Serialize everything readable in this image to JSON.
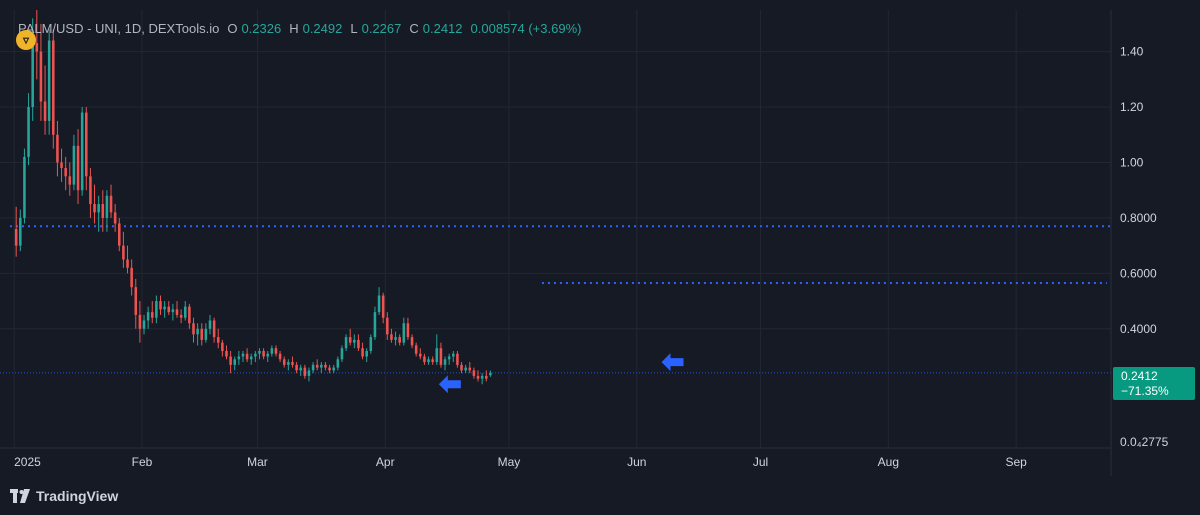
{
  "header": {
    "symbol": "PALM/USD - UNI, 1D, DEXTools.io",
    "open_label": "O",
    "open": "0.2326",
    "high_label": "H",
    "high": "0.2492",
    "low_label": "L",
    "low": "0.2267",
    "close_label": "C",
    "close": "0.2412",
    "change": "0.008574 (+3.69%)"
  },
  "badge": {
    "price": "0.2412",
    "change_pct": "−71.35%"
  },
  "branding": {
    "name": "TradingView"
  },
  "colors": {
    "up": "#26a69a",
    "down": "#ef5350",
    "background": "#161a25",
    "grid": "#232733",
    "level_line": "#2962ff",
    "badge": "#089981",
    "arrow": "#2962ff"
  },
  "icons": {
    "symbol_logo": "palm-token-icon",
    "brand_logo": "tradingview-logo-icon",
    "marker": "arrow-left-icon"
  },
  "chart_data": {
    "type": "candlestick",
    "x_axis": {
      "ticks": [
        "2025",
        "Feb",
        "Mar",
        "Apr",
        "May",
        "Jun",
        "Jul",
        "Aug",
        "Sep"
      ],
      "range": [
        "2024-12-31",
        "2025-09-24"
      ]
    },
    "y_axis": {
      "ticks": [
        "1.40",
        "1.20",
        "1.00",
        "0.8000",
        "0.6000",
        "0.4000"
      ],
      "min_label": "0.0₄2775",
      "range": [
        -0.03,
        1.55
      ],
      "position": "right"
    },
    "grid": true,
    "current_price": 0.2412,
    "candles": [
      [
        0.76,
        0.84,
        0.66,
        0.7
      ],
      [
        0.7,
        0.83,
        0.68,
        0.8
      ],
      [
        0.8,
        1.05,
        0.78,
        1.02
      ],
      [
        1.02,
        1.25,
        0.99,
        1.2
      ],
      [
        1.2,
        1.52,
        1.15,
        1.43
      ],
      [
        1.43,
        1.55,
        1.3,
        1.4
      ],
      [
        1.4,
        1.5,
        1.15,
        1.22
      ],
      [
        1.22,
        1.35,
        1.1,
        1.15
      ],
      [
        1.15,
        1.48,
        1.1,
        1.44
      ],
      [
        1.44,
        1.48,
        1.05,
        1.1
      ],
      [
        1.1,
        1.15,
        0.95,
        1.0
      ],
      [
        1.0,
        1.05,
        0.93,
        0.98
      ],
      [
        0.98,
        1.02,
        0.9,
        0.95
      ],
      [
        0.95,
        1.0,
        0.88,
        0.92
      ],
      [
        0.92,
        1.1,
        0.9,
        1.06
      ],
      [
        1.06,
        1.12,
        0.85,
        0.9
      ],
      [
        0.9,
        1.2,
        0.88,
        1.18
      ],
      [
        1.18,
        1.2,
        0.9,
        0.95
      ],
      [
        0.95,
        0.98,
        0.8,
        0.85
      ],
      [
        0.85,
        0.92,
        0.78,
        0.82
      ],
      [
        0.82,
        0.88,
        0.75,
        0.85
      ],
      [
        0.85,
        0.9,
        0.75,
        0.8
      ],
      [
        0.8,
        0.9,
        0.75,
        0.88
      ],
      [
        0.88,
        0.92,
        0.8,
        0.82
      ],
      [
        0.82,
        0.85,
        0.75,
        0.78
      ],
      [
        0.78,
        0.8,
        0.68,
        0.7
      ],
      [
        0.7,
        0.75,
        0.62,
        0.65
      ],
      [
        0.65,
        0.7,
        0.6,
        0.62
      ],
      [
        0.62,
        0.65,
        0.52,
        0.55
      ],
      [
        0.55,
        0.58,
        0.4,
        0.45
      ],
      [
        0.45,
        0.5,
        0.35,
        0.4
      ],
      [
        0.4,
        0.45,
        0.38,
        0.43
      ],
      [
        0.43,
        0.48,
        0.4,
        0.46
      ],
      [
        0.46,
        0.5,
        0.42,
        0.44
      ],
      [
        0.44,
        0.52,
        0.42,
        0.5
      ],
      [
        0.5,
        0.52,
        0.45,
        0.47
      ],
      [
        0.47,
        0.5,
        0.44,
        0.48
      ],
      [
        0.48,
        0.5,
        0.45,
        0.46
      ],
      [
        0.46,
        0.49,
        0.43,
        0.47
      ],
      [
        0.47,
        0.5,
        0.44,
        0.45
      ],
      [
        0.45,
        0.47,
        0.42,
        0.44
      ],
      [
        0.44,
        0.5,
        0.43,
        0.48
      ],
      [
        0.48,
        0.49,
        0.4,
        0.42
      ],
      [
        0.42,
        0.44,
        0.35,
        0.38
      ],
      [
        0.38,
        0.42,
        0.34,
        0.4
      ],
      [
        0.4,
        0.42,
        0.34,
        0.36
      ],
      [
        0.36,
        0.42,
        0.35,
        0.4
      ],
      [
        0.4,
        0.45,
        0.38,
        0.43
      ],
      [
        0.43,
        0.44,
        0.35,
        0.37
      ],
      [
        0.37,
        0.4,
        0.33,
        0.35
      ],
      [
        0.35,
        0.36,
        0.3,
        0.32
      ],
      [
        0.32,
        0.34,
        0.29,
        0.3
      ],
      [
        0.3,
        0.32,
        0.24,
        0.27
      ],
      [
        0.27,
        0.3,
        0.25,
        0.29
      ],
      [
        0.29,
        0.32,
        0.27,
        0.3
      ],
      [
        0.3,
        0.32,
        0.28,
        0.31
      ],
      [
        0.31,
        0.33,
        0.28,
        0.29
      ],
      [
        0.29,
        0.31,
        0.27,
        0.3
      ],
      [
        0.3,
        0.32,
        0.28,
        0.31
      ],
      [
        0.31,
        0.33,
        0.29,
        0.32
      ],
      [
        0.32,
        0.33,
        0.29,
        0.3
      ],
      [
        0.3,
        0.32,
        0.28,
        0.31
      ],
      [
        0.31,
        0.34,
        0.3,
        0.33
      ],
      [
        0.33,
        0.34,
        0.3,
        0.31
      ],
      [
        0.31,
        0.32,
        0.28,
        0.29
      ],
      [
        0.29,
        0.3,
        0.26,
        0.27
      ],
      [
        0.27,
        0.29,
        0.25,
        0.28
      ],
      [
        0.28,
        0.3,
        0.26,
        0.27
      ],
      [
        0.27,
        0.28,
        0.24,
        0.25
      ],
      [
        0.25,
        0.27,
        0.23,
        0.26
      ],
      [
        0.26,
        0.27,
        0.22,
        0.23
      ],
      [
        0.23,
        0.26,
        0.21,
        0.25
      ],
      [
        0.25,
        0.28,
        0.24,
        0.27
      ],
      [
        0.27,
        0.29,
        0.25,
        0.26
      ],
      [
        0.26,
        0.28,
        0.24,
        0.27
      ],
      [
        0.27,
        0.28,
        0.25,
        0.26
      ],
      [
        0.26,
        0.27,
        0.24,
        0.25
      ],
      [
        0.25,
        0.27,
        0.24,
        0.26
      ],
      [
        0.26,
        0.3,
        0.25,
        0.29
      ],
      [
        0.29,
        0.34,
        0.28,
        0.33
      ],
      [
        0.33,
        0.38,
        0.32,
        0.37
      ],
      [
        0.37,
        0.4,
        0.34,
        0.35
      ],
      [
        0.35,
        0.38,
        0.33,
        0.36
      ],
      [
        0.36,
        0.38,
        0.32,
        0.33
      ],
      [
        0.33,
        0.35,
        0.29,
        0.3
      ],
      [
        0.3,
        0.33,
        0.28,
        0.32
      ],
      [
        0.32,
        0.38,
        0.31,
        0.37
      ],
      [
        0.37,
        0.48,
        0.36,
        0.46
      ],
      [
        0.46,
        0.55,
        0.45,
        0.52
      ],
      [
        0.52,
        0.53,
        0.42,
        0.44
      ],
      [
        0.44,
        0.46,
        0.36,
        0.38
      ],
      [
        0.38,
        0.4,
        0.35,
        0.36
      ],
      [
        0.36,
        0.39,
        0.34,
        0.37
      ],
      [
        0.37,
        0.38,
        0.34,
        0.35
      ],
      [
        0.35,
        0.44,
        0.34,
        0.42
      ],
      [
        0.42,
        0.44,
        0.36,
        0.37
      ],
      [
        0.37,
        0.38,
        0.33,
        0.34
      ],
      [
        0.34,
        0.35,
        0.3,
        0.31
      ],
      [
        0.31,
        0.33,
        0.29,
        0.3
      ],
      [
        0.3,
        0.31,
        0.27,
        0.28
      ],
      [
        0.28,
        0.3,
        0.27,
        0.29
      ],
      [
        0.29,
        0.3,
        0.27,
        0.28
      ],
      [
        0.28,
        0.38,
        0.27,
        0.33
      ],
      [
        0.33,
        0.35,
        0.26,
        0.27
      ],
      [
        0.27,
        0.3,
        0.25,
        0.29
      ],
      [
        0.29,
        0.31,
        0.27,
        0.3
      ],
      [
        0.3,
        0.32,
        0.28,
        0.31
      ],
      [
        0.31,
        0.32,
        0.26,
        0.27
      ],
      [
        0.27,
        0.28,
        0.24,
        0.25
      ],
      [
        0.25,
        0.27,
        0.24,
        0.26
      ],
      [
        0.26,
        0.28,
        0.24,
        0.25
      ],
      [
        0.25,
        0.26,
        0.22,
        0.23
      ],
      [
        0.23,
        0.25,
        0.21,
        0.22
      ],
      [
        0.22,
        0.24,
        0.2,
        0.23
      ],
      [
        0.23,
        0.25,
        0.21,
        0.22
      ],
      [
        0.2326,
        0.2492,
        0.2267,
        0.2412
      ]
    ],
    "horizontal_levels": [
      {
        "value": 0.77,
        "style": "dotted",
        "from": "2024-12-31",
        "to": "2025-09-24"
      },
      {
        "value": 0.565,
        "style": "dotted",
        "from": "2025-05-09",
        "to": "2025-09-23"
      }
    ],
    "annotations": [
      {
        "type": "arrow-left",
        "date": "2025-04-14",
        "value": 0.2
      },
      {
        "type": "arrow-left",
        "date": "2025-06-07",
        "value": 0.28
      }
    ]
  }
}
